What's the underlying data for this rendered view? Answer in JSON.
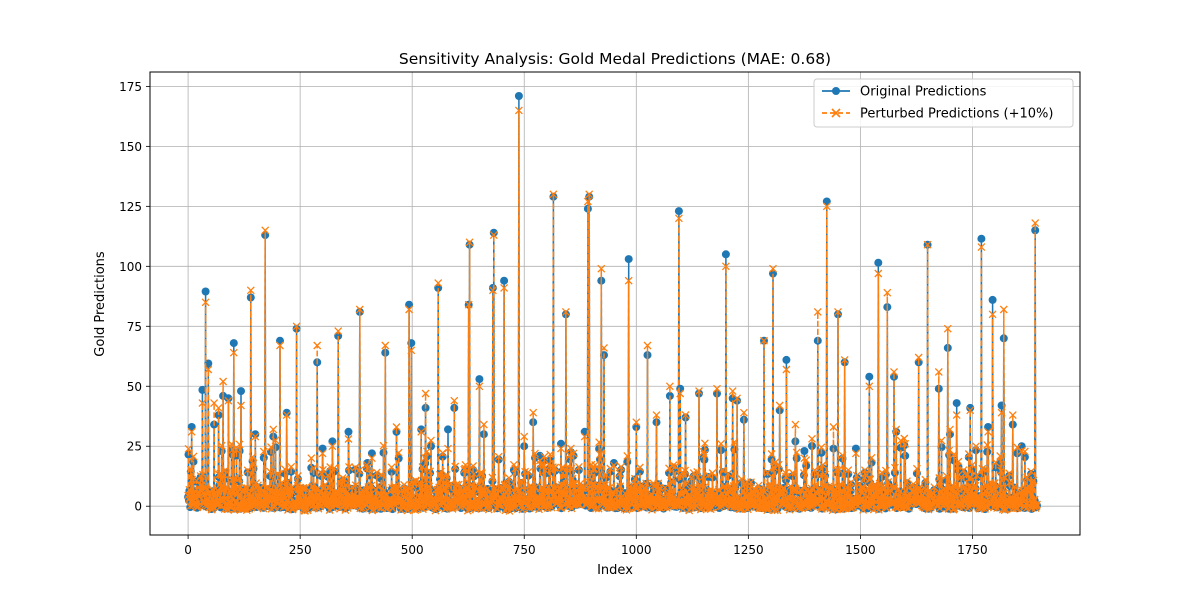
{
  "chart_data": {
    "type": "line",
    "title": "Sensitivity Analysis: Gold Medal Predictions (MAE: 0.68)",
    "xlabel": "Index",
    "ylabel": "Gold Predictions",
    "xlim": [
      -85,
      1990
    ],
    "ylim": [
      -12,
      181
    ],
    "xticks": [
      0,
      250,
      500,
      750,
      1000,
      1250,
      1500,
      1750
    ],
    "yticks": [
      0,
      25,
      50,
      75,
      100,
      125,
      150,
      175
    ],
    "grid": true,
    "legend_position": "top-right",
    "n_points": 1895,
    "series": [
      {
        "name": "Original Predictions",
        "color": "#1f77b4",
        "marker": "circle",
        "linestyle": "solid",
        "spikes": [
          [
            8,
            33
          ],
          [
            32,
            48.5
          ],
          [
            39,
            89.5
          ],
          [
            45,
            59.5
          ],
          [
            58,
            34
          ],
          [
            68,
            38
          ],
          [
            78,
            46
          ],
          [
            90,
            45
          ],
          [
            102,
            68
          ],
          [
            118,
            48
          ],
          [
            140,
            87
          ],
          [
            150,
            30
          ],
          [
            172,
            113
          ],
          [
            190,
            29
          ],
          [
            205,
            69
          ],
          [
            220,
            39
          ],
          [
            242,
            74
          ],
          [
            275,
            16
          ],
          [
            288,
            60
          ],
          [
            300,
            24
          ],
          [
            322,
            27
          ],
          [
            335,
            71
          ],
          [
            358,
            31
          ],
          [
            383,
            81
          ],
          [
            400,
            18
          ],
          [
            410,
            22
          ],
          [
            440,
            64
          ],
          [
            465,
            31
          ],
          [
            493,
            84
          ],
          [
            498,
            68
          ],
          [
            520,
            32
          ],
          [
            530,
            41
          ],
          [
            558,
            91
          ],
          [
            580,
            32
          ],
          [
            594,
            41
          ],
          [
            626,
            84
          ],
          [
            628,
            109
          ],
          [
            650,
            53
          ],
          [
            660,
            30
          ],
          [
            680,
            91
          ],
          [
            682,
            114
          ],
          [
            705,
            94
          ],
          [
            738,
            171
          ],
          [
            750,
            25
          ],
          [
            770,
            35
          ],
          [
            785,
            21
          ],
          [
            815,
            129
          ],
          [
            832,
            26
          ],
          [
            843,
            80
          ],
          [
            860,
            21
          ],
          [
            885,
            31
          ],
          [
            892,
            124
          ],
          [
            895,
            129
          ],
          [
            922,
            94
          ],
          [
            928,
            63
          ],
          [
            950,
            18
          ],
          [
            983,
            103
          ],
          [
            1000,
            33
          ],
          [
            1025,
            63
          ],
          [
            1045,
            35
          ],
          [
            1075,
            46
          ],
          [
            1095,
            123
          ],
          [
            1098,
            49
          ],
          [
            1110,
            37
          ],
          [
            1140,
            47
          ],
          [
            1180,
            47
          ],
          [
            1200,
            105
          ],
          [
            1215,
            45
          ],
          [
            1225,
            44
          ],
          [
            1240,
            36
          ],
          [
            1285,
            69
          ],
          [
            1305,
            97
          ],
          [
            1320,
            40
          ],
          [
            1335,
            61
          ],
          [
            1355,
            27
          ],
          [
            1375,
            23
          ],
          [
            1405,
            69
          ],
          [
            1425,
            127
          ],
          [
            1440,
            24
          ],
          [
            1450,
            80
          ],
          [
            1465,
            60
          ],
          [
            1490,
            24
          ],
          [
            1510,
            14
          ],
          [
            1520,
            54
          ],
          [
            1540,
            101.5
          ],
          [
            1560,
            83
          ],
          [
            1575,
            54
          ],
          [
            1580,
            31
          ],
          [
            1600,
            21
          ],
          [
            1630,
            60
          ],
          [
            1650,
            109
          ],
          [
            1675,
            49
          ],
          [
            1695,
            66
          ],
          [
            1700,
            30
          ],
          [
            1715,
            43
          ],
          [
            1730,
            14
          ],
          [
            1745,
            41
          ],
          [
            1770,
            111.5
          ],
          [
            1785,
            33
          ],
          [
            1795,
            86
          ],
          [
            1815,
            42
          ],
          [
            1820,
            70
          ],
          [
            1840,
            34
          ],
          [
            1860,
            25
          ],
          [
            1890,
            115
          ]
        ]
      },
      {
        "name": "Perturbed Predictions (+10%)",
        "color": "#ff7f0e",
        "marker": "x",
        "linestyle": "dashed",
        "spikes": [
          [
            8,
            31
          ],
          [
            32,
            43
          ],
          [
            39,
            85
          ],
          [
            45,
            57
          ],
          [
            58,
            43
          ],
          [
            68,
            41
          ],
          [
            78,
            52
          ],
          [
            90,
            44
          ],
          [
            102,
            64
          ],
          [
            118,
            42
          ],
          [
            140,
            90
          ],
          [
            150,
            29
          ],
          [
            172,
            115
          ],
          [
            190,
            32
          ],
          [
            205,
            67
          ],
          [
            220,
            38
          ],
          [
            242,
            75
          ],
          [
            275,
            20
          ],
          [
            288,
            67
          ],
          [
            300,
            22
          ],
          [
            322,
            25
          ],
          [
            335,
            73
          ],
          [
            358,
            28
          ],
          [
            383,
            82
          ],
          [
            400,
            16
          ],
          [
            410,
            20
          ],
          [
            440,
            67
          ],
          [
            465,
            33
          ],
          [
            493,
            82
          ],
          [
            498,
            65
          ],
          [
            520,
            31
          ],
          [
            530,
            47
          ],
          [
            558,
            93
          ],
          [
            580,
            24
          ],
          [
            594,
            44
          ],
          [
            626,
            84
          ],
          [
            628,
            110
          ],
          [
            650,
            50
          ],
          [
            660,
            34
          ],
          [
            680,
            90
          ],
          [
            682,
            113
          ],
          [
            705,
            91
          ],
          [
            738,
            165
          ],
          [
            750,
            29
          ],
          [
            770,
            39
          ],
          [
            785,
            19
          ],
          [
            815,
            130
          ],
          [
            832,
            24
          ],
          [
            843,
            81
          ],
          [
            860,
            22
          ],
          [
            885,
            29
          ],
          [
            892,
            127
          ],
          [
            895,
            130
          ],
          [
            922,
            99
          ],
          [
            928,
            66
          ],
          [
            950,
            17
          ],
          [
            983,
            94
          ],
          [
            1000,
            35
          ],
          [
            1025,
            67
          ],
          [
            1045,
            38
          ],
          [
            1075,
            50
          ],
          [
            1095,
            120
          ],
          [
            1098,
            47
          ],
          [
            1110,
            38
          ],
          [
            1140,
            48
          ],
          [
            1180,
            49
          ],
          [
            1200,
            100
          ],
          [
            1215,
            48
          ],
          [
            1225,
            45
          ],
          [
            1240,
            39
          ],
          [
            1285,
            69
          ],
          [
            1305,
            99
          ],
          [
            1320,
            42
          ],
          [
            1335,
            57
          ],
          [
            1355,
            34
          ],
          [
            1375,
            20
          ],
          [
            1405,
            81
          ],
          [
            1425,
            125
          ],
          [
            1440,
            33
          ],
          [
            1450,
            81
          ],
          [
            1465,
            61
          ],
          [
            1490,
            22
          ],
          [
            1510,
            15
          ],
          [
            1520,
            50
          ],
          [
            1540,
            97
          ],
          [
            1560,
            89
          ],
          [
            1575,
            56
          ],
          [
            1580,
            32
          ],
          [
            1600,
            26
          ],
          [
            1630,
            62
          ],
          [
            1650,
            109
          ],
          [
            1675,
            56
          ],
          [
            1695,
            74
          ],
          [
            1700,
            32
          ],
          [
            1715,
            38
          ],
          [
            1730,
            15
          ],
          [
            1745,
            40
          ],
          [
            1770,
            108
          ],
          [
            1785,
            31
          ],
          [
            1795,
            80
          ],
          [
            1815,
            39
          ],
          [
            1820,
            82
          ],
          [
            1840,
            38
          ],
          [
            1860,
            23
          ],
          [
            1890,
            118
          ]
        ]
      }
    ]
  }
}
